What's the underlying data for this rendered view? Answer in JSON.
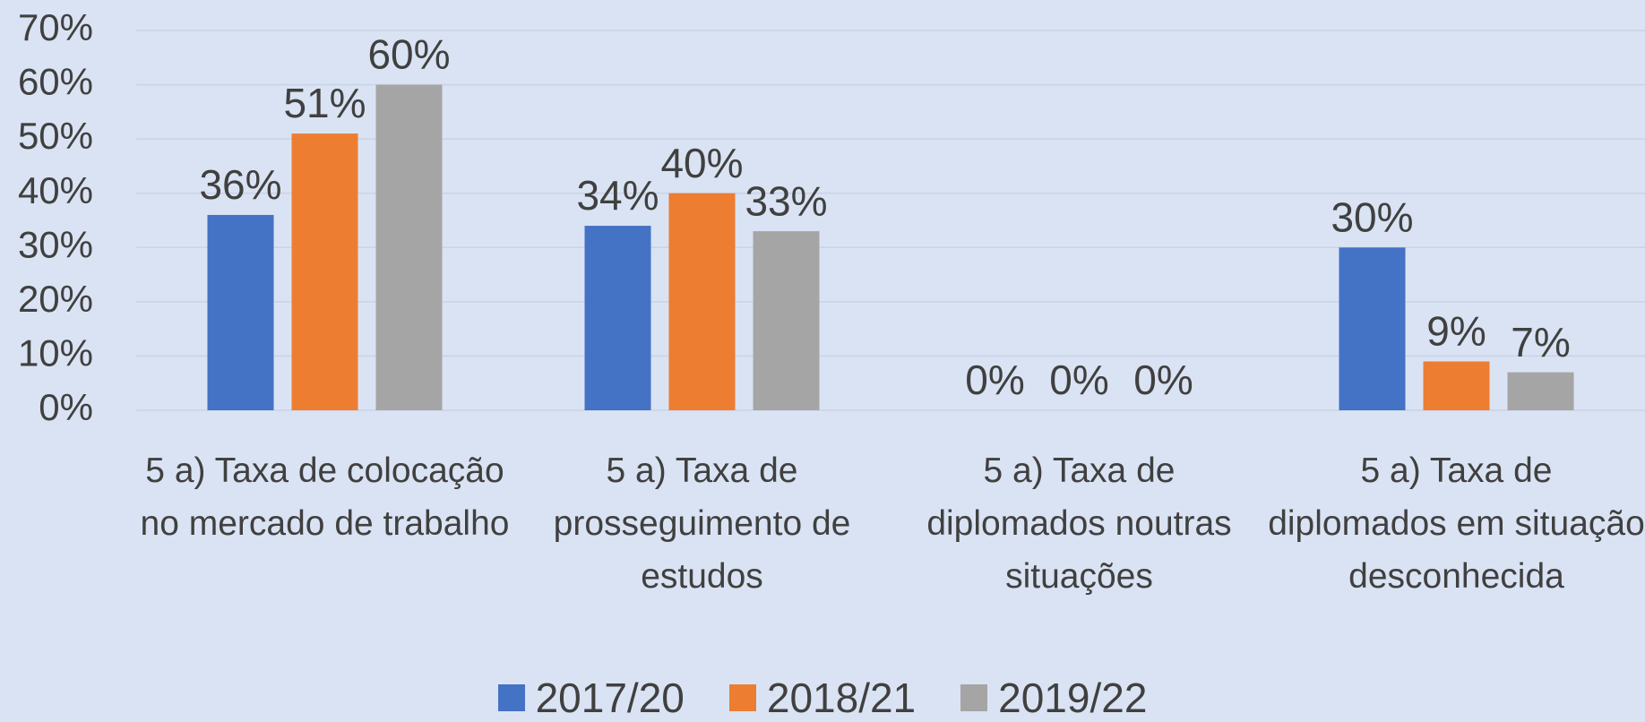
{
  "chart_data": {
    "type": "bar",
    "categories": [
      "5 a) Taxa de colocação no mercado de trabalho",
      "5 a) Taxa de prosseguimento de estudos",
      "5 a) Taxa de diplomados noutras situações",
      "5 a) Taxa de diplomados em situação desconhecida"
    ],
    "series": [
      {
        "name": "2017/20",
        "color": "#4472c4",
        "values": [
          36,
          34,
          0,
          30
        ],
        "value_labels": [
          "36%",
          "34%",
          "0%",
          "30%"
        ]
      },
      {
        "name": "2018/21",
        "color": "#ed7d31",
        "values": [
          51,
          40,
          0,
          9
        ],
        "value_labels": [
          "51%",
          "40%",
          "0%",
          "9%"
        ]
      },
      {
        "name": "2019/22",
        "color": "#a5a5a5",
        "values": [
          60,
          33,
          0,
          7
        ],
        "value_labels": [
          "60%",
          "33%",
          "0%",
          "7%"
        ]
      }
    ],
    "ylim": [
      0,
      70
    ],
    "yticks": [
      {
        "value": 0,
        "label": "0%"
      },
      {
        "value": 10,
        "label": "10%"
      },
      {
        "value": 20,
        "label": "20%"
      },
      {
        "value": 30,
        "label": "30%"
      },
      {
        "value": 40,
        "label": "40%"
      },
      {
        "value": 50,
        "label": "50%"
      },
      {
        "value": 60,
        "label": "60%"
      },
      {
        "value": 70,
        "label": "70%"
      }
    ],
    "grid": true,
    "legend": "bottom"
  }
}
